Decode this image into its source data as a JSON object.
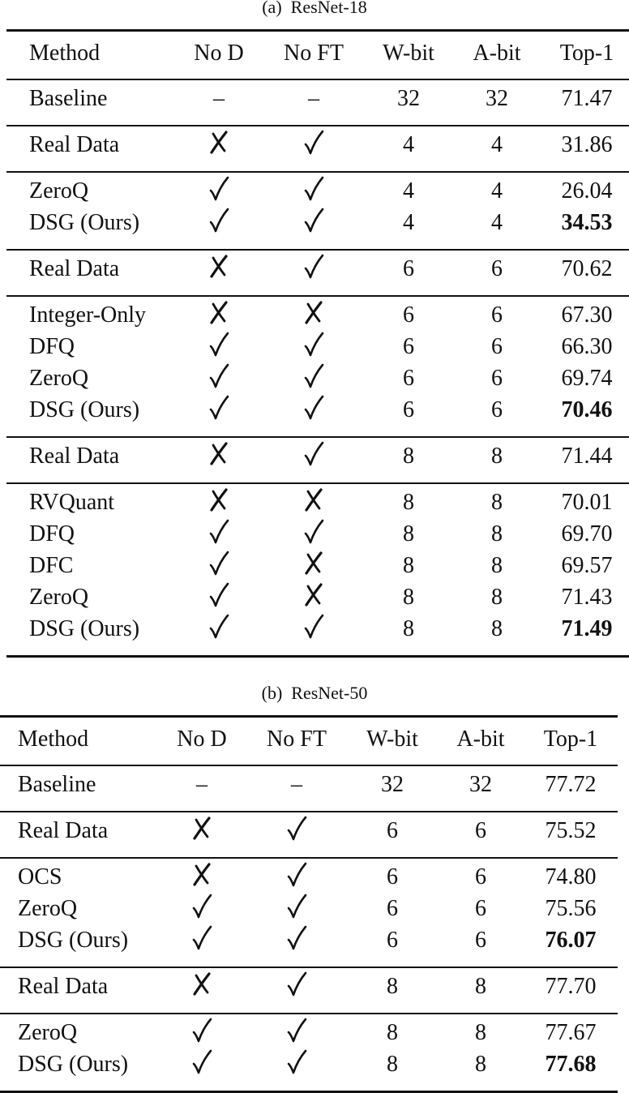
{
  "tables": [
    {
      "caption": "(a)  ResNet-18",
      "columns": [
        "Method",
        "No D",
        "No FT",
        "W-bit",
        "A-bit",
        "Top-1"
      ],
      "groups": [
        [
          {
            "method": "Baseline",
            "no_d": "–",
            "no_ft": "–",
            "w_bit": "32",
            "a_bit": "32",
            "top1": "71.47",
            "bold": false
          }
        ],
        [
          {
            "method": "Real Data",
            "no_d": "cross",
            "no_ft": "check",
            "w_bit": "4",
            "a_bit": "4",
            "top1": "31.86",
            "bold": false
          }
        ],
        [
          {
            "method": "ZeroQ",
            "no_d": "check",
            "no_ft": "check",
            "w_bit": "4",
            "a_bit": "4",
            "top1": "26.04",
            "bold": false
          },
          {
            "method": "DSG (Ours)",
            "no_d": "check",
            "no_ft": "check",
            "w_bit": "4",
            "a_bit": "4",
            "top1": "34.53",
            "bold": true
          }
        ],
        [
          {
            "method": "Real Data",
            "no_d": "cross",
            "no_ft": "check",
            "w_bit": "6",
            "a_bit": "6",
            "top1": "70.62",
            "bold": false
          }
        ],
        [
          {
            "method": "Integer-Only",
            "no_d": "cross",
            "no_ft": "cross",
            "w_bit": "6",
            "a_bit": "6",
            "top1": "67.30",
            "bold": false
          },
          {
            "method": "DFQ",
            "no_d": "check",
            "no_ft": "check",
            "w_bit": "6",
            "a_bit": "6",
            "top1": "66.30",
            "bold": false
          },
          {
            "method": "ZeroQ",
            "no_d": "check",
            "no_ft": "check",
            "w_bit": "6",
            "a_bit": "6",
            "top1": "69.74",
            "bold": false
          },
          {
            "method": "DSG (Ours)",
            "no_d": "check",
            "no_ft": "check",
            "w_bit": "6",
            "a_bit": "6",
            "top1": "70.46",
            "bold": true
          }
        ],
        [
          {
            "method": "Real Data",
            "no_d": "cross",
            "no_ft": "check",
            "w_bit": "8",
            "a_bit": "8",
            "top1": "71.44",
            "bold": false
          }
        ],
        [
          {
            "method": "RVQuant",
            "no_d": "cross",
            "no_ft": "cross",
            "w_bit": "8",
            "a_bit": "8",
            "top1": "70.01",
            "bold": false
          },
          {
            "method": "DFQ",
            "no_d": "check",
            "no_ft": "check",
            "w_bit": "8",
            "a_bit": "8",
            "top1": "69.70",
            "bold": false
          },
          {
            "method": "DFC",
            "no_d": "check",
            "no_ft": "cross",
            "w_bit": "8",
            "a_bit": "8",
            "top1": "69.57",
            "bold": false
          },
          {
            "method": "ZeroQ",
            "no_d": "check",
            "no_ft": "cross",
            "w_bit": "8",
            "a_bit": "8",
            "top1": "71.43",
            "bold": false
          },
          {
            "method": "DSG (Ours)",
            "no_d": "check",
            "no_ft": "check",
            "w_bit": "8",
            "a_bit": "8",
            "top1": "71.49",
            "bold": true
          }
        ]
      ]
    },
    {
      "caption": "(b)  ResNet-50",
      "columns": [
        "Method",
        "No D",
        "No FT",
        "W-bit",
        "A-bit",
        "Top-1"
      ],
      "groups": [
        [
          {
            "method": "Baseline",
            "no_d": "–",
            "no_ft": "–",
            "w_bit": "32",
            "a_bit": "32",
            "top1": "77.72",
            "bold": false
          }
        ],
        [
          {
            "method": "Real Data",
            "no_d": "cross",
            "no_ft": "check",
            "w_bit": "6",
            "a_bit": "6",
            "top1": "75.52",
            "bold": false
          }
        ],
        [
          {
            "method": "OCS",
            "no_d": "cross",
            "no_ft": "check",
            "w_bit": "6",
            "a_bit": "6",
            "top1": "74.80",
            "bold": false
          },
          {
            "method": "ZeroQ",
            "no_d": "check",
            "no_ft": "check",
            "w_bit": "6",
            "a_bit": "6",
            "top1": "75.56",
            "bold": false
          },
          {
            "method": "DSG (Ours)",
            "no_d": "check",
            "no_ft": "check",
            "w_bit": "6",
            "a_bit": "6",
            "top1": "76.07",
            "bold": true
          }
        ],
        [
          {
            "method": "Real Data",
            "no_d": "cross",
            "no_ft": "check",
            "w_bit": "8",
            "a_bit": "8",
            "top1": "77.70",
            "bold": false
          }
        ],
        [
          {
            "method": "ZeroQ",
            "no_d": "check",
            "no_ft": "check",
            "w_bit": "8",
            "a_bit": "8",
            "top1": "77.67",
            "bold": false
          },
          {
            "method": "DSG (Ours)",
            "no_d": "check",
            "no_ft": "check",
            "w_bit": "8",
            "a_bit": "8",
            "top1": "77.68",
            "bold": true
          }
        ]
      ]
    }
  ]
}
